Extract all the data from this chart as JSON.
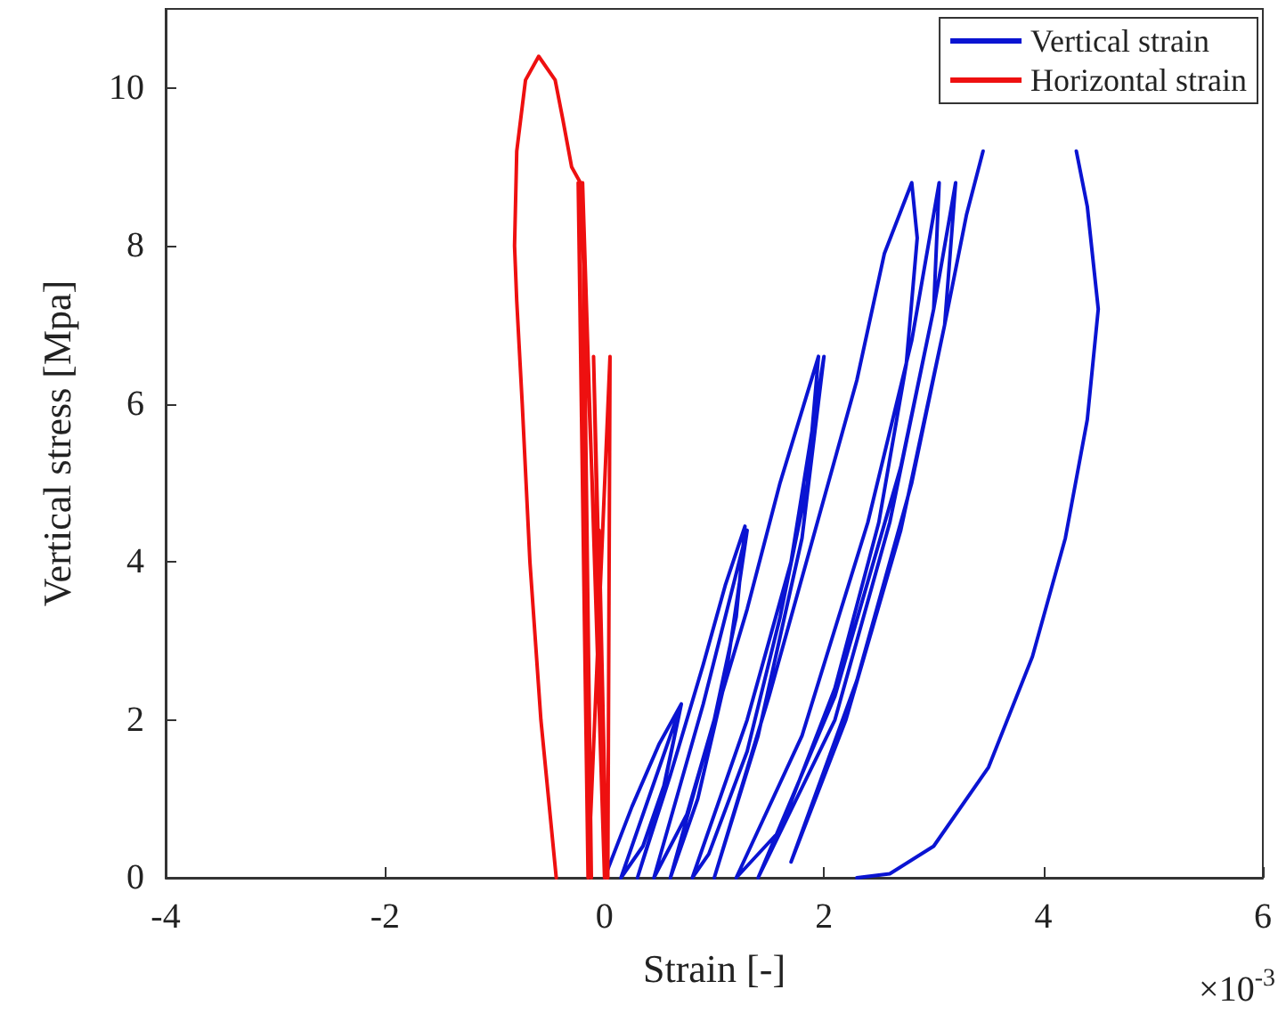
{
  "chart_data": {
    "type": "line",
    "xlabel": "Strain [-]",
    "ylabel": "Vertical stress [Mpa]",
    "xlim": [
      -4,
      6
    ],
    "xticks": [
      -4,
      -2,
      0,
      2,
      4,
      6
    ],
    "ylim": [
      0,
      11
    ],
    "yticks": [
      0,
      2,
      4,
      6,
      8,
      10
    ],
    "grid": false,
    "legend": "top right",
    "marker": "none",
    "line_style": "solid",
    "annotations": [
      "×10$^{-3}$"
    ],
    "series": [
      {
        "name": "Vertical strain",
        "color": "#0a14d2",
        "x": [
          0,
          0.25,
          0.5,
          0.7,
          0.55,
          0.35,
          0.15,
          0.4,
          0.7,
          0.5,
          0.3,
          0.6,
          0.9,
          1.1,
          1.28,
          1.2,
          1.0,
          0.75,
          0.45,
          0.9,
          1.3,
          1.1,
          0.85,
          0.6,
          1.0,
          1.3,
          1.6,
          1.95,
          1.85,
          1.6,
          1.3,
          0.95,
          0.8,
          1.3,
          1.7,
          2.0,
          1.8,
          1.4,
          1.0,
          1.5,
          1.9,
          2.3,
          2.55,
          2.8,
          2.85,
          2.75,
          2.5,
          2.1,
          1.6,
          1.2,
          1.8,
          2.4,
          2.8,
          3.05,
          3.0,
          2.6,
          2.1,
          1.4,
          2.1,
          2.7,
          3.0,
          3.2,
          3.1,
          2.7,
          2.2,
          1.7,
          2.3,
          2.8,
          3.1,
          3.3,
          3.45,
          3.9,
          4.3,
          4.4,
          4.5,
          4.4,
          4.2,
          3.9,
          3.5,
          3.0,
          2.6,
          2.3
        ],
        "values": [
          0,
          0.9,
          1.7,
          2.2,
          1.2,
          0.4,
          0,
          1.0,
          2.2,
          0.9,
          0,
          1.3,
          2.7,
          3.7,
          4.45,
          3.3,
          2.0,
          0.8,
          0,
          2.2,
          4.4,
          2.5,
          1.0,
          0,
          2.0,
          3.4,
          5.0,
          6.6,
          5.0,
          3.3,
          1.6,
          0.3,
          0,
          2.0,
          4.0,
          6.6,
          4.3,
          1.8,
          0,
          2.3,
          4.3,
          6.3,
          7.9,
          8.8,
          8.1,
          6.5,
          4.5,
          2.4,
          0.6,
          0,
          1.8,
          4.5,
          6.8,
          8.8,
          7.2,
          4.5,
          2.0,
          0,
          2.3,
          5.2,
          7.2,
          8.8,
          7.0,
          4.4,
          2.0,
          0.2,
          2.5,
          5.0,
          7.0,
          8.4,
          9.2,
          null,
          9.2,
          8.5,
          7.2,
          5.8,
          4.3,
          2.8,
          1.4,
          0.4,
          0.05,
          0
        ]
      },
      {
        "name": "Horizontal strain",
        "color": "#ee1010",
        "x": [
          0,
          -0.05,
          0.02,
          -0.1,
          0,
          -0.2,
          -0.12,
          -0.24,
          -0.15,
          0.05,
          0.03,
          -0.22,
          -0.3,
          -0.38,
          -0.45,
          -0.6,
          -0.72,
          -0.8,
          -0.82,
          -0.8,
          -0.75,
          -0.68,
          -0.58,
          -0.44
        ],
        "values": [
          0,
          4.4,
          0,
          6.6,
          0,
          8.8,
          0,
          8.8,
          0,
          6.6,
          0,
          8.8,
          9.0,
          9.6,
          10.1,
          10.4,
          10.1,
          9.2,
          8.0,
          7.3,
          6.0,
          4.0,
          2.0,
          0
        ]
      }
    ]
  }
}
